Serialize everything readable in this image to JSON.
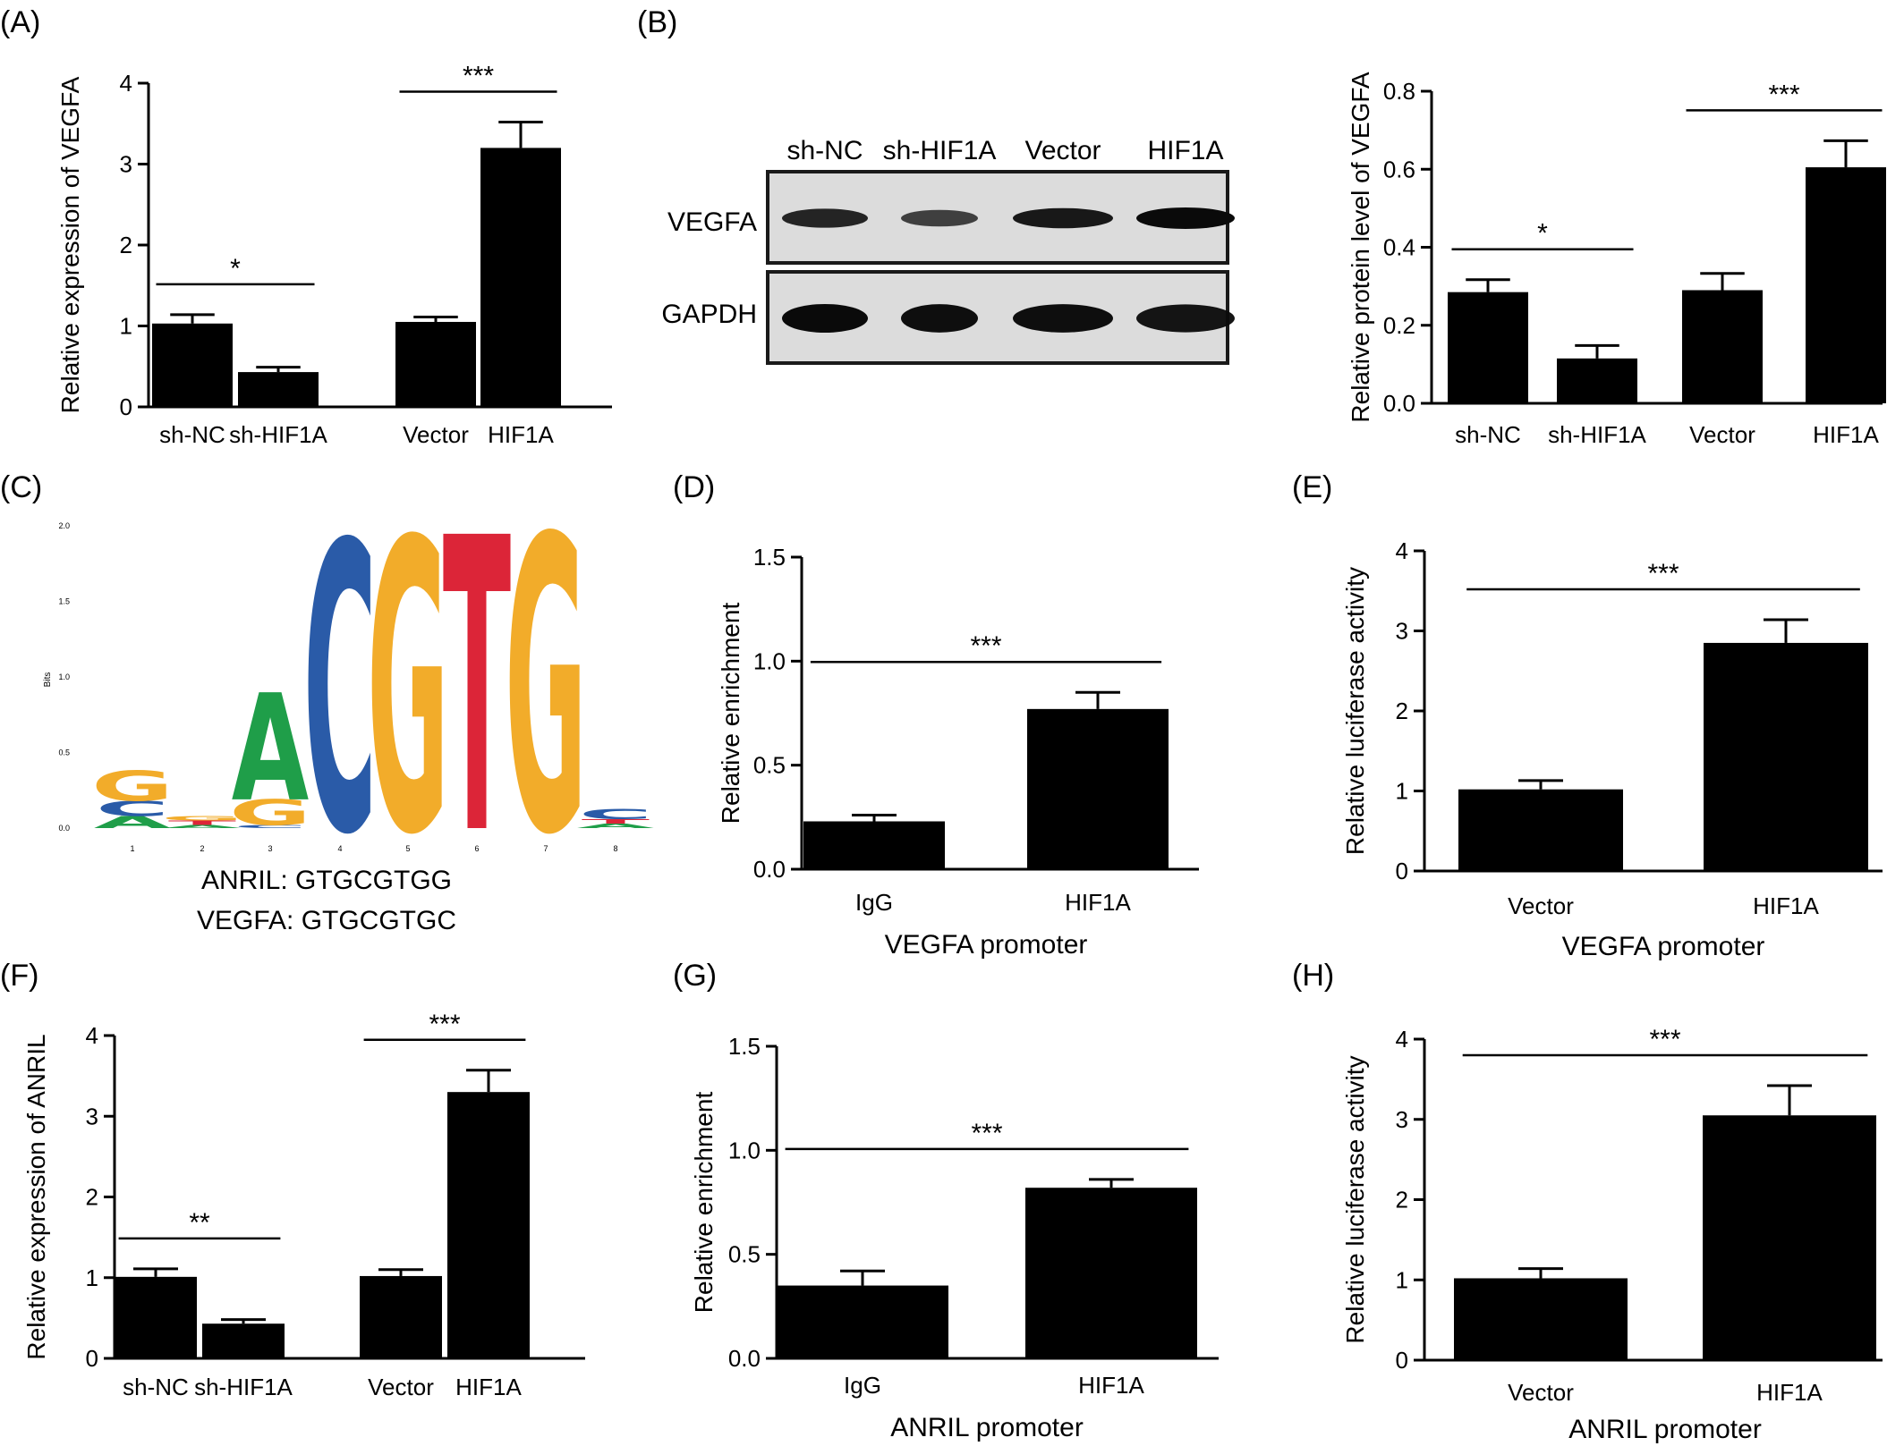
{
  "panel_labels": [
    "(A)",
    "(B)",
    "(C)",
    "(D)",
    "(E)",
    "(F)",
    "(G)",
    "(H)"
  ],
  "western_blot": {
    "lane_labels": [
      "sh-NC",
      "sh-HIF1A",
      "Vector",
      "HIF1A"
    ],
    "rows": [
      {
        "name": "VEGFA",
        "band_intensity": [
          0.78,
          0.55,
          0.88,
          1.0
        ]
      },
      {
        "name": "GAPDH",
        "band_intensity": [
          1.0,
          0.97,
          0.97,
          0.92
        ]
      }
    ],
    "colors": {
      "band": "#0a0a0a",
      "background": "#dcdcdc",
      "frame": "#1a1a1a"
    }
  },
  "motif_logo": {
    "y_ticks": [
      "0.0",
      "0.5",
      "1.0",
      "1.5",
      "2.0"
    ],
    "ylabel": "Bits",
    "positions": [
      "1",
      "2",
      "3",
      "4",
      "5",
      "6",
      "7",
      "8"
    ],
    "letters": [
      {
        "position": 1,
        "stack": [
          {
            "letter": "A",
            "bits": 0.08
          },
          {
            "letter": "C",
            "bits": 0.1
          },
          {
            "letter": "G",
            "bits": 0.2
          }
        ]
      },
      {
        "position": 2,
        "stack": [
          {
            "letter": "A",
            "bits": 0.02
          },
          {
            "letter": "T",
            "bits": 0.03
          },
          {
            "letter": "G",
            "bits": 0.03
          }
        ]
      },
      {
        "position": 3,
        "stack": [
          {
            "letter": "C",
            "bits": 0.02
          },
          {
            "letter": "G",
            "bits": 0.17
          },
          {
            "letter": "A",
            "bits": 0.71
          }
        ]
      },
      {
        "position": 4,
        "stack": [
          {
            "letter": "C",
            "bits": 1.91
          }
        ]
      },
      {
        "position": 5,
        "stack": [
          {
            "letter": "G",
            "bits": 1.93
          }
        ]
      },
      {
        "position": 6,
        "stack": [
          {
            "letter": "T",
            "bits": 1.95
          }
        ]
      },
      {
        "position": 7,
        "stack": [
          {
            "letter": "G",
            "bits": 1.95
          }
        ]
      },
      {
        "position": 8,
        "stack": [
          {
            "letter": "A",
            "bits": 0.03
          },
          {
            "letter": "T",
            "bits": 0.03
          },
          {
            "letter": "C",
            "bits": 0.07
          }
        ]
      }
    ],
    "colors": {
      "A": "#1f9e49",
      "C": "#2a5ba8",
      "G": "#f2ac2a",
      "T": "#dc2538"
    },
    "sequences": [
      "ANRIL: GTGCGTGG",
      "VEGFA: GTGCGTGC"
    ]
  },
  "chart_data": [
    {
      "panel": "(A)",
      "type": "bar",
      "categories": [
        "sh-NC",
        "sh-HIF1A",
        "Vector",
        "HIF1A"
      ],
      "values": [
        1.03,
        0.43,
        1.05,
        3.2
      ],
      "errors": [
        0.11,
        0.06,
        0.06,
        0.32
      ],
      "xlabel": "",
      "ylabel": "Relative expression of VEGFA",
      "ylim": [
        0,
        4
      ],
      "yticks": [
        "0",
        "1",
        "2",
        "3",
        "4"
      ],
      "significance": [
        {
          "between": [
            0,
            1
          ],
          "label": "*"
        },
        {
          "between": [
            2,
            3
          ],
          "label": "***"
        }
      ]
    },
    {
      "panel": "(B)",
      "type": "bar",
      "categories": [
        "sh-NC",
        "sh-HIF1A",
        "Vector",
        "HIF1A"
      ],
      "values": [
        0.285,
        0.115,
        0.29,
        0.605
      ],
      "errors": [
        0.032,
        0.033,
        0.043,
        0.068
      ],
      "xlabel": "",
      "ylabel": "Relative protein level of VEGFA",
      "ylim": [
        0,
        0.8
      ],
      "yticks": [
        "0.0",
        "0.2",
        "0.4",
        "0.6",
        "0.8"
      ],
      "significance": [
        {
          "between": [
            0,
            1
          ],
          "label": "*"
        },
        {
          "between": [
            2,
            3
          ],
          "label": "***"
        }
      ]
    },
    {
      "panel": "(D)",
      "type": "bar",
      "categories": [
        "IgG",
        "HIF1A"
      ],
      "values": [
        0.23,
        0.77
      ],
      "errors": [
        0.03,
        0.08
      ],
      "xlabel": "VEGFA promoter",
      "ylabel": "Relative enrichment",
      "ylim": [
        0,
        1.5
      ],
      "yticks": [
        "0.0",
        "0.5",
        "1.0",
        "1.5"
      ],
      "significance": [
        {
          "between": [
            0,
            1
          ],
          "label": "***"
        }
      ]
    },
    {
      "panel": "(E)",
      "type": "bar",
      "categories": [
        "Vector",
        "HIF1A"
      ],
      "values": [
        1.02,
        2.85
      ],
      "errors": [
        0.11,
        0.29
      ],
      "xlabel": "VEGFA promoter",
      "ylabel": "Relative luciferase activity",
      "ylim": [
        0,
        4
      ],
      "yticks": [
        "0",
        "1",
        "2",
        "3",
        "4"
      ],
      "significance": [
        {
          "between": [
            0,
            1
          ],
          "label": "***"
        }
      ]
    },
    {
      "panel": "(F)",
      "type": "bar",
      "categories": [
        "sh-NC",
        "sh-HIF1A",
        "Vector",
        "HIF1A"
      ],
      "values": [
        1.01,
        0.43,
        1.02,
        3.3
      ],
      "errors": [
        0.1,
        0.05,
        0.08,
        0.27
      ],
      "xlabel": "",
      "ylabel": "Relative expression of ANRIL",
      "ylim": [
        0,
        4
      ],
      "yticks": [
        "0",
        "1",
        "2",
        "3",
        "4"
      ],
      "significance": [
        {
          "between": [
            0,
            1
          ],
          "label": "**"
        },
        {
          "between": [
            2,
            3
          ],
          "label": "***"
        }
      ]
    },
    {
      "panel": "(G)",
      "type": "bar",
      "categories": [
        "IgG",
        "HIF1A"
      ],
      "values": [
        0.35,
        0.82
      ],
      "errors": [
        0.07,
        0.04
      ],
      "xlabel": "ANRIL promoter",
      "ylabel": "Relative enrichment",
      "ylim": [
        0,
        1.5
      ],
      "yticks": [
        "0.0",
        "0.5",
        "1.0",
        "1.5"
      ],
      "significance": [
        {
          "between": [
            0,
            1
          ],
          "label": "***"
        }
      ]
    },
    {
      "panel": "(H)",
      "type": "bar",
      "categories": [
        "Vector",
        "HIF1A"
      ],
      "values": [
        1.02,
        3.05
      ],
      "errors": [
        0.12,
        0.37
      ],
      "xlabel": "ANRIL promoter",
      "ylabel": "Relative luciferase activity",
      "ylim": [
        0,
        4
      ],
      "yticks": [
        "0",
        "1",
        "2",
        "3",
        "4"
      ],
      "significance": [
        {
          "between": [
            0,
            1
          ],
          "label": "***"
        }
      ]
    }
  ]
}
